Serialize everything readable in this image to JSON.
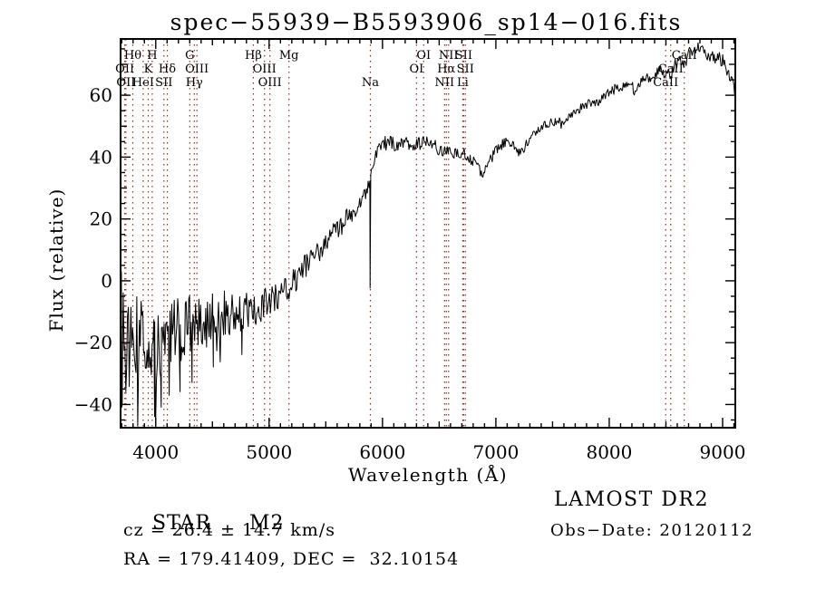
{
  "title": "spec−55939−B5593906_sp14−016.fits",
  "annotations": {
    "object_type": "STAR",
    "subclass": "M2",
    "cz_line": "cz = 26.4 ± 14.7 km/s",
    "radec_line": "RA = 179.41409, DEC =  32.10154",
    "survey": "LAMOST DR2",
    "obs_date_line": "Obs−Date: 20120112"
  },
  "chart_data": {
    "type": "line",
    "title": "spec−55939−B5593906_sp14−016.fits",
    "xlabel": "Wavelength (Å)",
    "ylabel": "Flux (relative)",
    "xlim": [
      3690,
      9112
    ],
    "ylim": [
      -47.5,
      78.2
    ],
    "grid": false,
    "line_color": "#000000",
    "spectral_line_color": "#97291f",
    "x_ticks": {
      "values": [
        4000,
        5000,
        6000,
        7000,
        8000,
        9000
      ],
      "labels": [
        "4000",
        "5000",
        "6000",
        "7000",
        "8000",
        "9000"
      ],
      "minor_step": 100,
      "major_step": 1000
    },
    "y_ticks": {
      "values": [
        60,
        40,
        20,
        0,
        -20,
        -40
      ],
      "labels": [
        "60",
        "40",
        "20",
        "0",
        "−20",
        "−40"
      ],
      "minor_step": 5,
      "major_step": 20
    },
    "spectral_lines": [
      {
        "label": "Hθ",
        "row": 1,
        "wavelength": 3798
      },
      {
        "label": "H",
        "row": 1,
        "wavelength": 3969
      },
      {
        "label": "G",
        "row": 1,
        "wavelength": 4300
      },
      {
        "label": "Hβ",
        "row": 1,
        "wavelength": 4861
      },
      {
        "label": "Mg",
        "row": 1,
        "wavelength": 5175
      },
      {
        "label": "OI",
        "row": 1,
        "wavelength": 6363
      },
      {
        "label": "NII",
        "row": 1,
        "wavelength": 6583
      },
      {
        "label": "SII",
        "row": 1,
        "wavelength": 6716
      },
      {
        "label": "CaII",
        "row": 1,
        "wavelength": 8662
      },
      {
        "label": "OII",
        "row": 2,
        "wavelength": 3727
      },
      {
        "label": "K",
        "row": 2,
        "wavelength": 3934
      },
      {
        "label": "Hδ",
        "row": 2,
        "wavelength": 4102
      },
      {
        "label": "OIII",
        "row": 2,
        "wavelength": 4363
      },
      {
        "label": "OIII",
        "row": 2,
        "wavelength": 4959
      },
      {
        "label": "OI",
        "row": 2,
        "wavelength": 6300
      },
      {
        "label": "Hα",
        "row": 2,
        "wavelength": 6563
      },
      {
        "label": "SII",
        "row": 2,
        "wavelength": 6731
      },
      {
        "label": "CaII",
        "row": 2,
        "wavelength": 8542
      },
      {
        "label": "OII",
        "row": 3,
        "wavelength": 3737
      },
      {
        "label": "HeI",
        "row": 3,
        "wavelength": 3889
      },
      {
        "label": "SII",
        "row": 3,
        "wavelength": 4072
      },
      {
        "label": "Hγ",
        "row": 3,
        "wavelength": 4340
      },
      {
        "label": "OIII",
        "row": 3,
        "wavelength": 5007
      },
      {
        "label": "Na",
        "row": 3,
        "wavelength": 5893
      },
      {
        "label": "NII",
        "row": 3,
        "wavelength": 6548
      },
      {
        "label": "Li",
        "row": 3,
        "wavelength": 6708
      },
      {
        "label": "CaII",
        "row": 3,
        "wavelength": 8498
      }
    ],
    "spectrum": {
      "noise_seed": 13,
      "control_points": [
        [
          3690,
          -13
        ],
        [
          3730,
          -17
        ],
        [
          3780,
          -15
        ],
        [
          3830,
          -19
        ],
        [
          3880,
          -17
        ],
        [
          3930,
          -19
        ],
        [
          3970,
          -21
        ],
        [
          4010,
          -24
        ],
        [
          4060,
          -21
        ],
        [
          4110,
          -19
        ],
        [
          4160,
          -17
        ],
        [
          4210,
          -16
        ],
        [
          4260,
          -15
        ],
        [
          4310,
          -14
        ],
        [
          4360,
          -15
        ],
        [
          4410,
          -13
        ],
        [
          4460,
          -13
        ],
        [
          4510,
          -12
        ],
        [
          4560,
          -11
        ],
        [
          4610,
          -10
        ],
        [
          4660,
          -11
        ],
        [
          4710,
          -11
        ],
        [
          4760,
          -10
        ],
        [
          4810,
          -10
        ],
        [
          4860,
          -9
        ],
        [
          4910,
          -9
        ],
        [
          4960,
          -8
        ],
        [
          5010,
          -7
        ],
        [
          5060,
          -6
        ],
        [
          5110,
          -4
        ],
        [
          5160,
          -2
        ],
        [
          5210,
          0
        ],
        [
          5260,
          2
        ],
        [
          5310,
          4
        ],
        [
          5360,
          6
        ],
        [
          5410,
          8
        ],
        [
          5460,
          10
        ],
        [
          5510,
          13
        ],
        [
          5560,
          15
        ],
        [
          5610,
          17
        ],
        [
          5660,
          19
        ],
        [
          5710,
          21
        ],
        [
          5760,
          23
        ],
        [
          5810,
          26
        ],
        [
          5860,
          29
        ],
        [
          5905,
          36
        ],
        [
          5950,
          41
        ],
        [
          6000,
          44
        ],
        [
          6060,
          45
        ],
        [
          6120,
          44
        ],
        [
          6180,
          45
        ],
        [
          6240,
          44
        ],
        [
          6300,
          44
        ],
        [
          6360,
          45
        ],
        [
          6420,
          45
        ],
        [
          6480,
          43
        ],
        [
          6540,
          42
        ],
        [
          6600,
          42
        ],
        [
          6660,
          41
        ],
        [
          6720,
          41
        ],
        [
          6780,
          39
        ],
        [
          6840,
          37
        ],
        [
          6870,
          34
        ],
        [
          6900,
          36
        ],
        [
          6950,
          39
        ],
        [
          7000,
          42
        ],
        [
          7050,
          44
        ],
        [
          7100,
          45
        ],
        [
          7150,
          45
        ],
        [
          7185,
          42
        ],
        [
          7220,
          41
        ],
        [
          7260,
          44
        ],
        [
          7300,
          45
        ],
        [
          7350,
          48
        ],
        [
          7400,
          50
        ],
        [
          7450,
          51
        ],
        [
          7500,
          51
        ],
        [
          7550,
          52
        ],
        [
          7585,
          50
        ],
        [
          7620,
          51
        ],
        [
          7660,
          54
        ],
        [
          7700,
          55
        ],
        [
          7750,
          56
        ],
        [
          7800,
          57
        ],
        [
          7850,
          58
        ],
        [
          7900,
          58
        ],
        [
          7950,
          60
        ],
        [
          8000,
          61
        ],
        [
          8050,
          62
        ],
        [
          8100,
          62
        ],
        [
          8150,
          63
        ],
        [
          8200,
          63
        ],
        [
          8230,
          61
        ],
        [
          8270,
          64
        ],
        [
          8310,
          65
        ],
        [
          8360,
          66
        ],
        [
          8410,
          67
        ],
        [
          8460,
          68
        ],
        [
          8495,
          65
        ],
        [
          8520,
          68
        ],
        [
          8545,
          66
        ],
        [
          8580,
          70
        ],
        [
          8620,
          71
        ],
        [
          8660,
          69
        ],
        [
          8700,
          74
        ],
        [
          8750,
          75
        ],
        [
          8800,
          75
        ],
        [
          8850,
          74
        ],
        [
          8900,
          73
        ],
        [
          8950,
          72
        ],
        [
          9000,
          71
        ],
        [
          9040,
          68
        ],
        [
          9070,
          65
        ],
        [
          9110,
          60
        ]
      ],
      "noise_profile": [
        [
          3690,
          16
        ],
        [
          3900,
          13
        ],
        [
          4100,
          12
        ],
        [
          4400,
          9
        ],
        [
          4700,
          7
        ],
        [
          5000,
          5.5
        ],
        [
          5300,
          4.5
        ],
        [
          5600,
          3.5
        ],
        [
          5900,
          2.6
        ],
        [
          6200,
          2.2
        ],
        [
          6600,
          2
        ],
        [
          7000,
          1.8
        ],
        [
          7400,
          1.6
        ],
        [
          8000,
          1.6
        ],
        [
          8400,
          1.8
        ],
        [
          8800,
          2.2
        ],
        [
          9110,
          2.8
        ]
      ],
      "absorption_spikes": [
        [
          3697,
          3
        ],
        [
          3704,
          -40
        ],
        [
          3736,
          -36
        ],
        [
          3990,
          -44
        ],
        [
          4048,
          -41
        ],
        [
          4215,
          -36
        ],
        [
          4320,
          -33
        ],
        [
          4508,
          -28
        ],
        [
          4760,
          -24
        ],
        [
          5891,
          -2.5
        ]
      ]
    }
  }
}
